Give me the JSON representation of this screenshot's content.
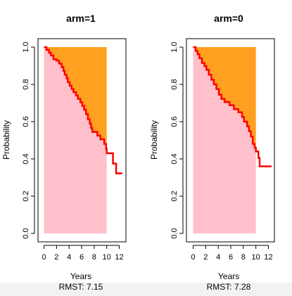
{
  "chart_data": [
    {
      "type": "area",
      "title": "arm=1",
      "xlabel": "Years",
      "ylabel": "Probability",
      "footer": "RMST: 7.15",
      "xlim": [
        0,
        12.8
      ],
      "ylim": [
        0,
        1.0
      ],
      "xticks": [
        0,
        2,
        4,
        6,
        8,
        10,
        12
      ],
      "xtick_labels": [
        "0",
        "2",
        "4",
        "6",
        "8",
        "10",
        "12"
      ],
      "yticks": [
        0.0,
        0.2,
        0.4,
        0.6,
        0.8,
        1.0
      ],
      "ytick_labels": [
        "0.0",
        "0.2",
        "0.4",
        "0.6",
        "0.8",
        "1.0"
      ],
      "tau": 10,
      "area_under_color": "#FFC0CB",
      "area_over_color": "#FFA020",
      "curve_color": "#FF0000",
      "survival_steps": [
        {
          "t": 0.0,
          "s": 1.0
        },
        {
          "t": 0.4,
          "s": 0.985
        },
        {
          "t": 0.8,
          "s": 0.97
        },
        {
          "t": 1.1,
          "s": 0.955
        },
        {
          "t": 1.5,
          "s": 0.935
        },
        {
          "t": 2.0,
          "s": 0.928
        },
        {
          "t": 2.4,
          "s": 0.912
        },
        {
          "t": 2.8,
          "s": 0.893
        },
        {
          "t": 3.1,
          "s": 0.872
        },
        {
          "t": 3.3,
          "s": 0.852
        },
        {
          "t": 3.6,
          "s": 0.832
        },
        {
          "t": 3.8,
          "s": 0.812
        },
        {
          "t": 4.1,
          "s": 0.793
        },
        {
          "t": 4.4,
          "s": 0.775
        },
        {
          "t": 4.7,
          "s": 0.758
        },
        {
          "t": 5.1,
          "s": 0.74
        },
        {
          "t": 5.4,
          "s": 0.722
        },
        {
          "t": 5.8,
          "s": 0.704
        },
        {
          "t": 6.1,
          "s": 0.684
        },
        {
          "t": 6.4,
          "s": 0.664
        },
        {
          "t": 6.7,
          "s": 0.64
        },
        {
          "t": 7.0,
          "s": 0.612
        },
        {
          "t": 7.3,
          "s": 0.589
        },
        {
          "t": 7.5,
          "s": 0.566
        },
        {
          "t": 7.7,
          "s": 0.545
        },
        {
          "t": 8.5,
          "s": 0.525
        },
        {
          "t": 9.0,
          "s": 0.505
        },
        {
          "t": 9.6,
          "s": 0.48
        },
        {
          "t": 9.9,
          "s": 0.455
        },
        {
          "t": 10.0,
          "s": 0.43
        },
        {
          "t": 11.0,
          "s": 0.375
        },
        {
          "t": 11.5,
          "s": 0.322
        },
        {
          "t": 12.5,
          "s": 0.322
        }
      ]
    },
    {
      "type": "area",
      "title": "arm=0",
      "xlabel": "Years",
      "ylabel": "Probability",
      "footer": "RMST: 7.28",
      "xlim": [
        0,
        12.8
      ],
      "ylim": [
        0,
        1.0
      ],
      "xticks": [
        0,
        2,
        4,
        6,
        8,
        10,
        12
      ],
      "xtick_labels": [
        "0",
        "2",
        "4",
        "6",
        "8",
        "10",
        "12"
      ],
      "yticks": [
        0.0,
        0.2,
        0.4,
        0.6,
        0.8,
        1.0
      ],
      "ytick_labels": [
        "0.0",
        "0.2",
        "0.4",
        "0.6",
        "0.8",
        "1.0"
      ],
      "tau": 10,
      "area_under_color": "#FFC0CB",
      "area_over_color": "#FFA020",
      "curve_color": "#FF0000",
      "survival_steps": [
        {
          "t": 0.0,
          "s": 1.0
        },
        {
          "t": 0.4,
          "s": 0.98
        },
        {
          "t": 0.7,
          "s": 0.962
        },
        {
          "t": 1.0,
          "s": 0.94
        },
        {
          "t": 1.4,
          "s": 0.915
        },
        {
          "t": 1.8,
          "s": 0.898
        },
        {
          "t": 2.1,
          "s": 0.878
        },
        {
          "t": 2.5,
          "s": 0.852
        },
        {
          "t": 2.9,
          "s": 0.825
        },
        {
          "t": 3.3,
          "s": 0.8
        },
        {
          "t": 3.7,
          "s": 0.775
        },
        {
          "t": 4.1,
          "s": 0.745
        },
        {
          "t": 4.5,
          "s": 0.722
        },
        {
          "t": 5.0,
          "s": 0.705
        },
        {
          "t": 5.8,
          "s": 0.688
        },
        {
          "t": 6.5,
          "s": 0.667
        },
        {
          "t": 7.2,
          "s": 0.65
        },
        {
          "t": 7.8,
          "s": 0.625
        },
        {
          "t": 8.1,
          "s": 0.6
        },
        {
          "t": 8.6,
          "s": 0.575
        },
        {
          "t": 8.9,
          "s": 0.548
        },
        {
          "t": 9.2,
          "s": 0.52
        },
        {
          "t": 9.5,
          "s": 0.48
        },
        {
          "t": 9.8,
          "s": 0.46
        },
        {
          "t": 10.0,
          "s": 0.44
        },
        {
          "t": 10.4,
          "s": 0.405
        },
        {
          "t": 10.6,
          "s": 0.36
        },
        {
          "t": 12.5,
          "s": 0.36
        }
      ]
    }
  ]
}
